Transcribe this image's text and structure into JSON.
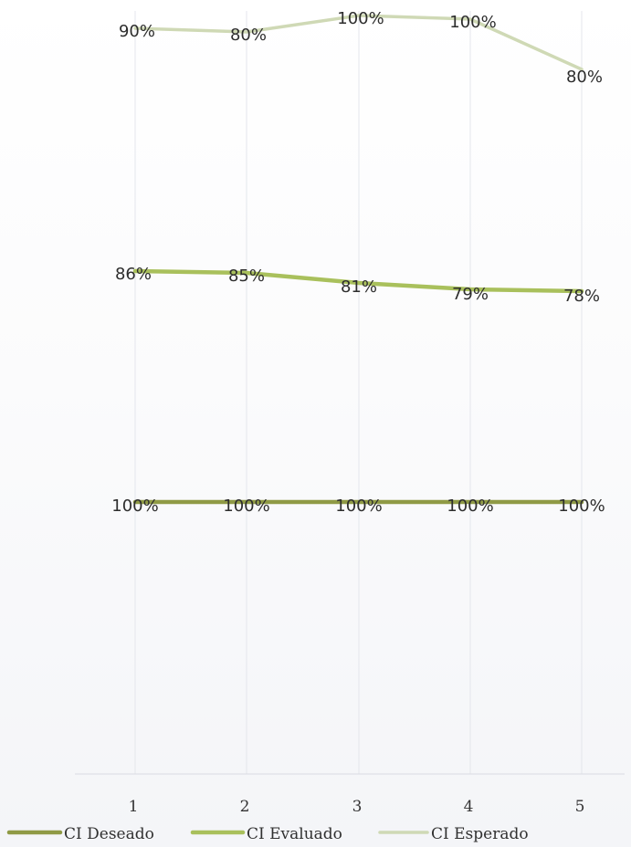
{
  "chart_data": {
    "type": "line",
    "title": "",
    "xlabel": "",
    "ylabel": "",
    "x": [
      "1",
      "2",
      "3",
      "4",
      "5"
    ],
    "ylim": [
      0,
      1
    ],
    "grid": "vertical",
    "legend_position": "bottom",
    "series": [
      {
        "name": "CI Deseado",
        "values": [
          1.0,
          1.0,
          1.0,
          1.0,
          1.0
        ],
        "labels": [
          "100%",
          "100%",
          "100%",
          "100%",
          "100%"
        ],
        "color": "#8f9a45"
      },
      {
        "name": "CI Evaluado",
        "values": [
          0.86,
          0.85,
          0.81,
          0.79,
          0.78
        ],
        "labels": [
          "86%",
          "85%",
          "81%",
          "79%",
          "78%"
        ],
        "color": "#a9c05c"
      },
      {
        "name": "CI Esperado",
        "values": [
          0.9,
          0.8,
          1.0,
          1.0,
          0.8
        ],
        "labels": [
          "90%",
          "80%",
          "100%",
          "100%",
          "80%"
        ],
        "color": "#cfd9b5"
      }
    ]
  }
}
